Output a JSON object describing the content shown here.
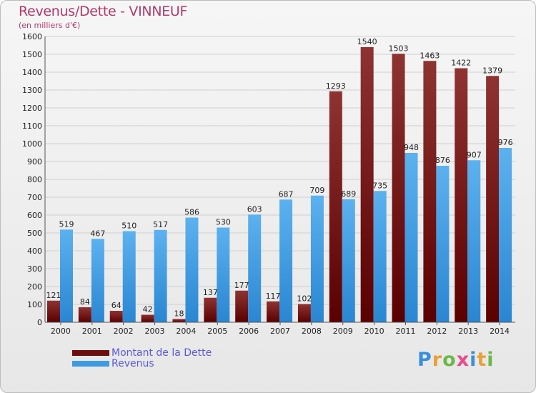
{
  "header": {
    "title": "Revenus/Dette - VINNEUF",
    "subtitle": "(en milliers d'€)"
  },
  "chart_data": {
    "type": "bar",
    "title": "Revenus/Dette - VINNEUF",
    "subtitle": "(en milliers d'€)",
    "xlabel": "",
    "ylabel": "",
    "categories": [
      "2000",
      "2001",
      "2002",
      "2003",
      "2004",
      "2005",
      "2006",
      "2007",
      "2008",
      "2009",
      "2010",
      "2011",
      "2012",
      "2013",
      "2014"
    ],
    "series": [
      {
        "name": "Montant de la Dette",
        "color": "#7a1a1a",
        "values": [
          121,
          84,
          64,
          42,
          18,
          137,
          177,
          117,
          102,
          1293,
          1540,
          1503,
          1463,
          1422,
          1379
        ]
      },
      {
        "name": "Revenus",
        "color": "#3d9be3",
        "values": [
          519,
          467,
          510,
          517,
          586,
          530,
          603,
          687,
          709,
          689,
          735,
          948,
          876,
          907,
          976
        ]
      }
    ],
    "ylim": [
      0,
      1600
    ],
    "yticks": [
      0,
      100,
      200,
      300,
      400,
      500,
      600,
      700,
      800,
      900,
      1000,
      1100,
      1200,
      1300,
      1400,
      1500,
      1600
    ],
    "grid": true,
    "legend": "bottom-left"
  },
  "legend": {
    "items": [
      {
        "label": "Montant de la Dette",
        "color": "#6b0f0f"
      },
      {
        "label": "Revenus",
        "color": "#3d9be3"
      }
    ]
  },
  "logo": {
    "letters": [
      {
        "char": "P",
        "color": "#3a8fd8"
      },
      {
        "char": "r",
        "color": "#e8a13a"
      },
      {
        "char": "o",
        "color": "#6bb84a"
      },
      {
        "char": "x",
        "color": "#e84a8a"
      },
      {
        "char": "i",
        "color": "#3a8fd8"
      },
      {
        "char": "t",
        "color": "#e8a13a"
      },
      {
        "char": "i",
        "color": "#6bb84a"
      }
    ]
  }
}
